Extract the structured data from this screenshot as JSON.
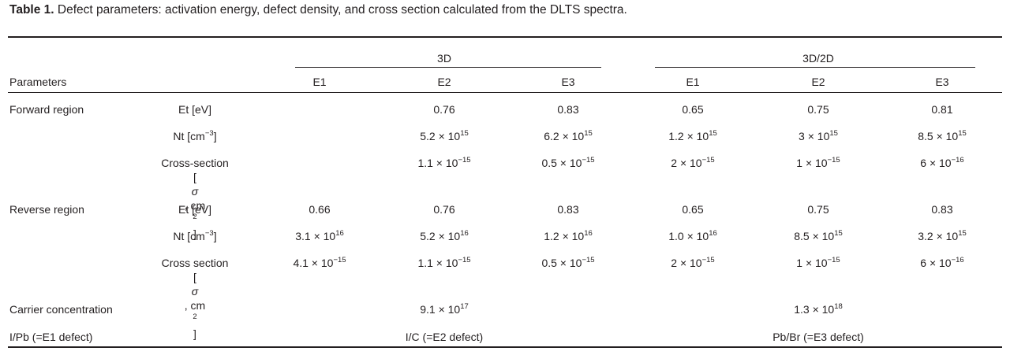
{
  "caption": {
    "label": "Table 1.",
    "text": "Defect parameters: activation energy, defect density, and cross section calculated from the DLTS spectra."
  },
  "header": {
    "group_3d": "3D",
    "group_3d2d": "3D/2D",
    "parameters": "Parameters",
    "cols": [
      "E1",
      "E2",
      "E3",
      "E1",
      "E2",
      "E3"
    ]
  },
  "sections": {
    "forward": "Forward region",
    "reverse": "Reverse region",
    "carrier": "Carrier concentration",
    "defect_row": "I/Pb (=E1 defect)"
  },
  "params": {
    "et": "Et [eV]",
    "nt_base": "Nt [cm",
    "nt_exp": "−3",
    "nt_close": "]",
    "cs_forward": "Cross-section",
    "cs_reverse": "Cross section",
    "cs_unit_sigma": "σ",
    "cs_unit_open": "[",
    "cs_unit_mid": ", cm",
    "cs_unit_exp": "2",
    "cs_unit_close": "]"
  },
  "times": "×",
  "forward": {
    "et": [
      "",
      "0.76",
      "0.83",
      "0.65",
      "0.75",
      "0.81"
    ],
    "nt": [
      {
        "m": "",
        "e": ""
      },
      {
        "m": "5.2",
        "e": "15"
      },
      {
        "m": "6.2",
        "e": "15"
      },
      {
        "m": "1.2",
        "e": "15"
      },
      {
        "m": "3",
        "e": "15"
      },
      {
        "m": "8.5",
        "e": "15"
      }
    ],
    "cs": [
      {
        "m": "",
        "e": ""
      },
      {
        "m": "1.1",
        "e": "−15"
      },
      {
        "m": "0.5",
        "e": "−15"
      },
      {
        "m": "2",
        "e": "−15"
      },
      {
        "m": "1",
        "e": "−15"
      },
      {
        "m": "6",
        "e": "−16"
      }
    ]
  },
  "reverse": {
    "et": [
      "0.66",
      "0.76",
      "0.83",
      "0.65",
      "0.75",
      "0.83"
    ],
    "nt": [
      {
        "m": "3.1",
        "e": "16"
      },
      {
        "m": "5.2",
        "e": "16"
      },
      {
        "m": "1.2",
        "e": "16"
      },
      {
        "m": "1.0",
        "e": "16"
      },
      {
        "m": "8.5",
        "e": "15"
      },
      {
        "m": "3.2",
        "e": "15"
      }
    ],
    "cs": [
      {
        "m": "4.1",
        "e": "−15"
      },
      {
        "m": "1.1",
        "e": "−15"
      },
      {
        "m": "0.5",
        "e": "−15"
      },
      {
        "m": "2",
        "e": "−15"
      },
      {
        "m": "1",
        "e": "−15"
      },
      {
        "m": "6",
        "e": "−16"
      }
    ]
  },
  "carrier": [
    {
      "m": "9.1",
      "e": "17"
    },
    {
      "m": "1.3",
      "e": "18"
    }
  ],
  "defects": [
    "I/C (=E2 defect)",
    "Pb/Br (=E3 defect)"
  ]
}
